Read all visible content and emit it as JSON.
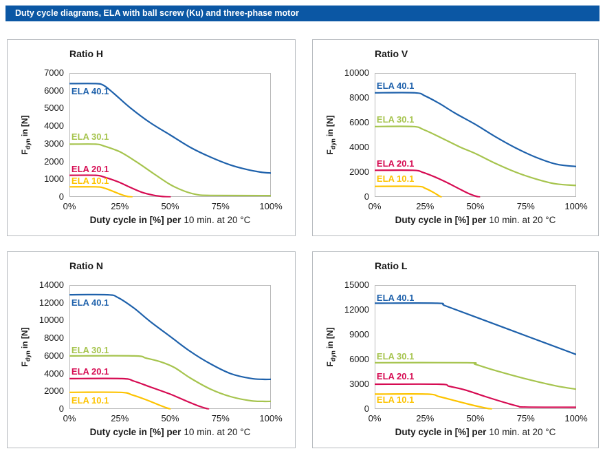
{
  "header": {
    "title": "Duty cycle diagrams, ELA with ball screw (Ku) and three-phase motor",
    "bg_color": "#0b57a4"
  },
  "axis": {
    "x_label_bold": "Duty cycle in [%] per",
    "x_label_regular": "10 min. at 20 °C",
    "y_label_main": "F",
    "y_label_sub": "dyn",
    "y_label_rest": "in [N]"
  },
  "colors": {
    "ela_40_1": "#1e61ab",
    "ela_30_1": "#a6c44e",
    "ela_20_1": "#d60b52",
    "ela_10_1": "#fdc300",
    "plot_border": "#b9b9b9",
    "panel_border": "#b6babe",
    "header_bg": "#0b57a4"
  },
  "chart_data": [
    {
      "type": "line",
      "title": "Ratio H",
      "xlabel": "Duty cycle in [%] per 10 min. at 20 °C",
      "ylabel": "Fdyn in [N]",
      "xlim": [
        0,
        100
      ],
      "ylim": [
        0,
        7000
      ],
      "ytick_step": 1000,
      "x_ticks": [
        {
          "value": 0,
          "label": "0%"
        },
        {
          "value": 25,
          "label": "25%"
        },
        {
          "value": 50,
          "label": "50%"
        },
        {
          "value": 75,
          "label": "75%"
        },
        {
          "value": 100,
          "label": "100%"
        }
      ],
      "grid": false,
      "legend_position": "inline-left",
      "series": [
        {
          "name": "ELA 40.1",
          "color": "#1e61ab",
          "label_pos": [
            1,
            5950
          ],
          "points": [
            [
              0,
              6400
            ],
            [
              13,
              6400
            ],
            [
              17,
              6300
            ],
            [
              22,
              5850
            ],
            [
              30,
              5050
            ],
            [
              40,
              4200
            ],
            [
              50,
              3500
            ],
            [
              60,
              2800
            ],
            [
              70,
              2250
            ],
            [
              80,
              1800
            ],
            [
              88,
              1550
            ],
            [
              95,
              1400
            ],
            [
              100,
              1350
            ]
          ]
        },
        {
          "name": "ELA 30.1",
          "color": "#a6c44e",
          "label_pos": [
            1,
            3400
          ],
          "points": [
            [
              0,
              2980
            ],
            [
              13,
              2980
            ],
            [
              17,
              2880
            ],
            [
              25,
              2550
            ],
            [
              33,
              2000
            ],
            [
              42,
              1300
            ],
            [
              50,
              700
            ],
            [
              57,
              330
            ],
            [
              63,
              140
            ],
            [
              70,
              85
            ],
            [
              100,
              75
            ]
          ]
        },
        {
          "name": "ELA 20.1",
          "color": "#d60b52",
          "label_pos": [
            1,
            1560
          ],
          "points": [
            [
              0,
              1220
            ],
            [
              13,
              1220
            ],
            [
              17,
              1130
            ],
            [
              24,
              860
            ],
            [
              30,
              550
            ],
            [
              36,
              260
            ],
            [
              42,
              90
            ],
            [
              47,
              15
            ],
            [
              50,
              0
            ]
          ]
        },
        {
          "name": "ELA 10.1",
          "color": "#fdc300",
          "label_pos": [
            1,
            900
          ],
          "points": [
            [
              0,
              570
            ],
            [
              13,
              570
            ],
            [
              17,
              510
            ],
            [
              22,
              300
            ],
            [
              26,
              120
            ],
            [
              29,
              25
            ],
            [
              31,
              0
            ]
          ]
        }
      ]
    },
    {
      "type": "line",
      "title": "Ratio V",
      "xlabel": "Duty cycle in [%] per 10 min. at 20 °C",
      "ylabel": "Fdyn in [N]",
      "xlim": [
        0,
        100
      ],
      "ylim": [
        0,
        10000
      ],
      "ytick_step": 2000,
      "x_ticks": [
        {
          "value": 0,
          "label": "0%"
        },
        {
          "value": 25,
          "label": "25%"
        },
        {
          "value": 50,
          "label": "50%"
        },
        {
          "value": 75,
          "label": "75%"
        },
        {
          "value": 100,
          "label": "100%"
        }
      ],
      "grid": false,
      "legend_position": "inline-left",
      "series": [
        {
          "name": "ELA 40.1",
          "color": "#1e61ab",
          "label_pos": [
            1,
            8950
          ],
          "points": [
            [
              0,
              8400
            ],
            [
              20,
              8400
            ],
            [
              25,
              8150
            ],
            [
              32,
              7550
            ],
            [
              40,
              6750
            ],
            [
              50,
              5850
            ],
            [
              60,
              4850
            ],
            [
              70,
              3950
            ],
            [
              80,
              3200
            ],
            [
              90,
              2650
            ],
            [
              100,
              2450
            ]
          ]
        },
        {
          "name": "ELA 30.1",
          "color": "#a6c44e",
          "label_pos": [
            1,
            6200
          ],
          "points": [
            [
              0,
              5680
            ],
            [
              19,
              5680
            ],
            [
              24,
              5450
            ],
            [
              32,
              4850
            ],
            [
              42,
              4050
            ],
            [
              50,
              3500
            ],
            [
              60,
              2700
            ],
            [
              70,
              2000
            ],
            [
              80,
              1450
            ],
            [
              90,
              1050
            ],
            [
              100,
              930
            ]
          ]
        },
        {
          "name": "ELA 20.1",
          "color": "#d60b52",
          "label_pos": [
            1,
            2650
          ],
          "points": [
            [
              0,
              2150
            ],
            [
              19,
              2150
            ],
            [
              24,
              1980
            ],
            [
              30,
              1600
            ],
            [
              36,
              1150
            ],
            [
              42,
              650
            ],
            [
              47,
              250
            ],
            [
              51,
              20
            ],
            [
              52,
              0
            ]
          ]
        },
        {
          "name": "ELA 10.1",
          "color": "#fdc300",
          "label_pos": [
            1,
            1450
          ],
          "points": [
            [
              0,
              850
            ],
            [
              21,
              850
            ],
            [
              25,
              700
            ],
            [
              29,
              380
            ],
            [
              32,
              80
            ],
            [
              33,
              0
            ]
          ]
        }
      ]
    },
    {
      "type": "line",
      "title": "Ratio N",
      "xlabel": "Duty cycle in [%] per 10 min. at 20 °C",
      "ylabel": "Fdyn in [N]",
      "xlim": [
        0,
        100
      ],
      "ylim": [
        0,
        14000
      ],
      "ytick_step": 2000,
      "x_ticks": [
        {
          "value": 0,
          "label": "0%"
        },
        {
          "value": 25,
          "label": "25%"
        },
        {
          "value": 50,
          "label": "50%"
        },
        {
          "value": 75,
          "label": "75%"
        },
        {
          "value": 100,
          "label": "100%"
        }
      ],
      "grid": false,
      "legend_position": "inline-left",
      "series": [
        {
          "name": "ELA 40.1",
          "color": "#1e61ab",
          "label_pos": [
            1,
            12000
          ],
          "points": [
            [
              0,
              12900
            ],
            [
              19,
              12900
            ],
            [
              24,
              12600
            ],
            [
              32,
              11400
            ],
            [
              40,
              9900
            ],
            [
              50,
              8200
            ],
            [
              60,
              6500
            ],
            [
              70,
              5100
            ],
            [
              80,
              4000
            ],
            [
              90,
              3450
            ],
            [
              96,
              3350
            ],
            [
              100,
              3350
            ]
          ]
        },
        {
          "name": "ELA 30.1",
          "color": "#a6c44e",
          "label_pos": [
            1,
            6600
          ],
          "points": [
            [
              0,
              6000
            ],
            [
              32,
              6000
            ],
            [
              38,
              5750
            ],
            [
              45,
              5350
            ],
            [
              52,
              4700
            ],
            [
              60,
              3500
            ],
            [
              70,
              2250
            ],
            [
              80,
              1400
            ],
            [
              90,
              930
            ],
            [
              96,
              860
            ],
            [
              100,
              860
            ]
          ]
        },
        {
          "name": "ELA 20.1",
          "color": "#d60b52",
          "label_pos": [
            1,
            4200
          ],
          "points": [
            [
              0,
              3430
            ],
            [
              26,
              3430
            ],
            [
              32,
              3150
            ],
            [
              40,
              2500
            ],
            [
              50,
              1680
            ],
            [
              58,
              900
            ],
            [
              64,
              350
            ],
            [
              68,
              60
            ],
            [
              69,
              0
            ]
          ]
        },
        {
          "name": "ELA 10.1",
          "color": "#fdc300",
          "label_pos": [
            1,
            950
          ],
          "points": [
            [
              0,
              1880
            ],
            [
              25,
              1880
            ],
            [
              31,
              1600
            ],
            [
              38,
              1050
            ],
            [
              44,
              500
            ],
            [
              48,
              150
            ],
            [
              50,
              0
            ]
          ]
        }
      ]
    },
    {
      "type": "line",
      "title": "Ratio L",
      "xlabel": "Duty cycle in [%] per 10 min. at 20 °C",
      "ylabel": "Fdyn in [N]",
      "xlim": [
        0,
        100
      ],
      "ylim": [
        0,
        15000
      ],
      "ytick_step": 3000,
      "x_ticks": [
        {
          "value": 0,
          "label": "0%"
        },
        {
          "value": 25,
          "label": "25%"
        },
        {
          "value": 50,
          "label": "50%"
        },
        {
          "value": 75,
          "label": "75%"
        },
        {
          "value": 100,
          "label": "100%"
        }
      ],
      "grid": false,
      "legend_position": "inline-left",
      "series": [
        {
          "name": "ELA 40.1",
          "color": "#1e61ab",
          "label_pos": [
            1,
            13400
          ],
          "points": [
            [
              0,
              12800
            ],
            [
              31,
              12800
            ],
            [
              35,
              12500
            ],
            [
              50,
              11140
            ],
            [
              75,
              8870
            ],
            [
              100,
              6600
            ]
          ]
        },
        {
          "name": "ELA 30.1",
          "color": "#a6c44e",
          "label_pos": [
            1,
            6300
          ],
          "points": [
            [
              0,
              5600
            ],
            [
              46,
              5600
            ],
            [
              50,
              5400
            ],
            [
              60,
              4650
            ],
            [
              75,
              3650
            ],
            [
              90,
              2800
            ],
            [
              100,
              2400
            ]
          ]
        },
        {
          "name": "ELA 20.1",
          "color": "#d60b52",
          "label_pos": [
            1,
            3900
          ],
          "points": [
            [
              0,
              3000
            ],
            [
              32,
              3000
            ],
            [
              37,
              2750
            ],
            [
              45,
              2300
            ],
            [
              55,
              1500
            ],
            [
              65,
              750
            ],
            [
              71,
              350
            ],
            [
              75,
              230
            ],
            [
              100,
              210
            ]
          ]
        },
        {
          "name": "ELA 10.1",
          "color": "#fdc300",
          "label_pos": [
            1,
            1100
          ],
          "points": [
            [
              0,
              1800
            ],
            [
              26,
              1800
            ],
            [
              32,
              1500
            ],
            [
              40,
              1000
            ],
            [
              48,
              500
            ],
            [
              55,
              120
            ],
            [
              58,
              0
            ]
          ]
        }
      ]
    }
  ]
}
